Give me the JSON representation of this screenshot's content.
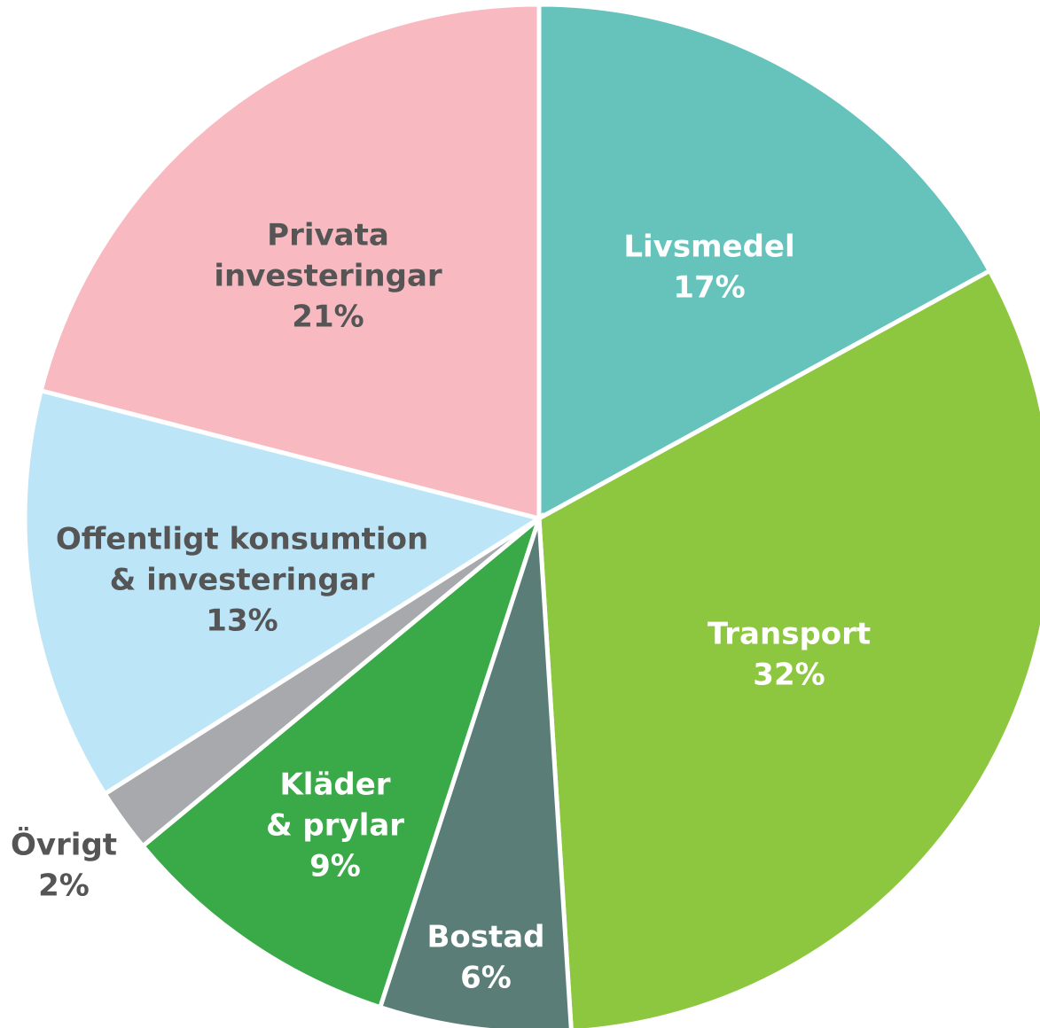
{
  "chart_data": {
    "type": "pie",
    "categories": [
      [
        "Livsmedel"
      ],
      [
        "Transport"
      ],
      [
        "Bostad"
      ],
      [
        "Kläder",
        "& prylar"
      ],
      [
        "Övrigt"
      ],
      [
        "Offentligt konsumtion",
        "& investeringar"
      ],
      [
        "Privata",
        "investeringar"
      ]
    ],
    "values": [
      17,
      32,
      6,
      9,
      2,
      13,
      21
    ],
    "value_labels": [
      "17%",
      "32%",
      "6%",
      "9%",
      "2%",
      "13%",
      "21%"
    ],
    "colors": [
      "#66c3bc",
      "#8dc63f",
      "#5a7d78",
      "#3aaa48",
      "#a7a9ac",
      "#bde5f8",
      "#f8b9c0"
    ]
  }
}
